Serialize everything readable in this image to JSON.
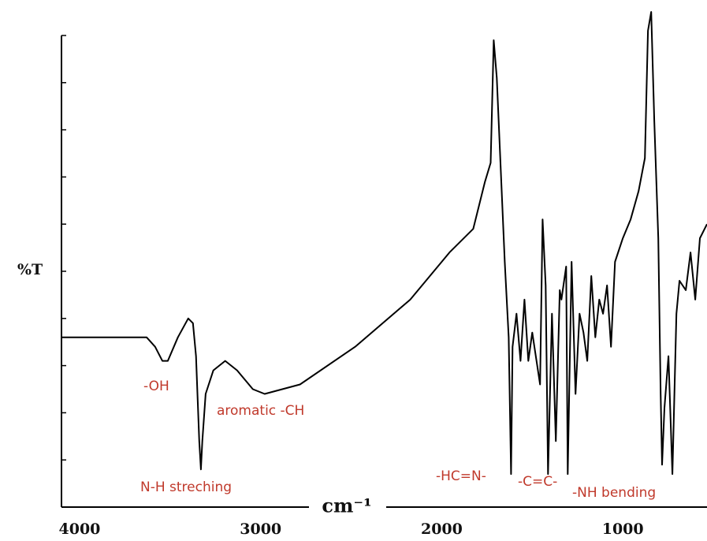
{
  "chart_data": {
    "type": "line",
    "xlabel": "cm⁻¹",
    "ylabel": "%T",
    "color": "#000000",
    "xlim": [
      4100,
      535
    ],
    "ylim": [
      0,
      100
    ],
    "xticks": [
      4000,
      3000,
      2000,
      1000
    ],
    "yticks": [
      0,
      10,
      20,
      30,
      40,
      50,
      60,
      70,
      80,
      90,
      100
    ],
    "x": [
      4096,
      3913,
      3630,
      3583,
      3543,
      3513,
      3457,
      3400,
      3374,
      3357,
      3339,
      3330,
      3322,
      3304,
      3261,
      3196,
      3130,
      3043,
      2978,
      2783,
      2478,
      2174,
      1957,
      1826,
      1761,
      1730,
      1713,
      1696,
      1652,
      1630,
      1617,
      1609,
      1587,
      1565,
      1543,
      1522,
      1500,
      1457,
      1443,
      1426,
      1413,
      1391,
      1370,
      1348,
      1339,
      1313,
      1304,
      1283,
      1261,
      1239,
      1217,
      1196,
      1174,
      1152,
      1130,
      1109,
      1087,
      1065,
      1043,
      1000,
      957,
      913,
      878,
      861,
      843,
      826,
      804,
      791,
      783,
      770,
      748,
      726,
      704,
      687,
      652,
      626,
      600,
      574,
      535
    ],
    "values": [
      36,
      36,
      36,
      34,
      31,
      31,
      36,
      40,
      39,
      32,
      14,
      8,
      14,
      24,
      29,
      31,
      29,
      25,
      24,
      26,
      34,
      44,
      54,
      59,
      69,
      73,
      99,
      91,
      52,
      36,
      7,
      34,
      41,
      31,
      44,
      31,
      37,
      26,
      61,
      47,
      7,
      41,
      14,
      46,
      44,
      51,
      7,
      52,
      24,
      41,
      37,
      31,
      49,
      36,
      44,
      41,
      47,
      34,
      52,
      57,
      61,
      67,
      74,
      101,
      105,
      82,
      57,
      24,
      9,
      21,
      32,
      7,
      41,
      48,
      46,
      54,
      44,
      57,
      60
    ],
    "annotations": [
      "-OH",
      "N-H streching",
      "aromatic -CH",
      "-HC=N-",
      "-C=C-",
      "-NH bending"
    ]
  }
}
